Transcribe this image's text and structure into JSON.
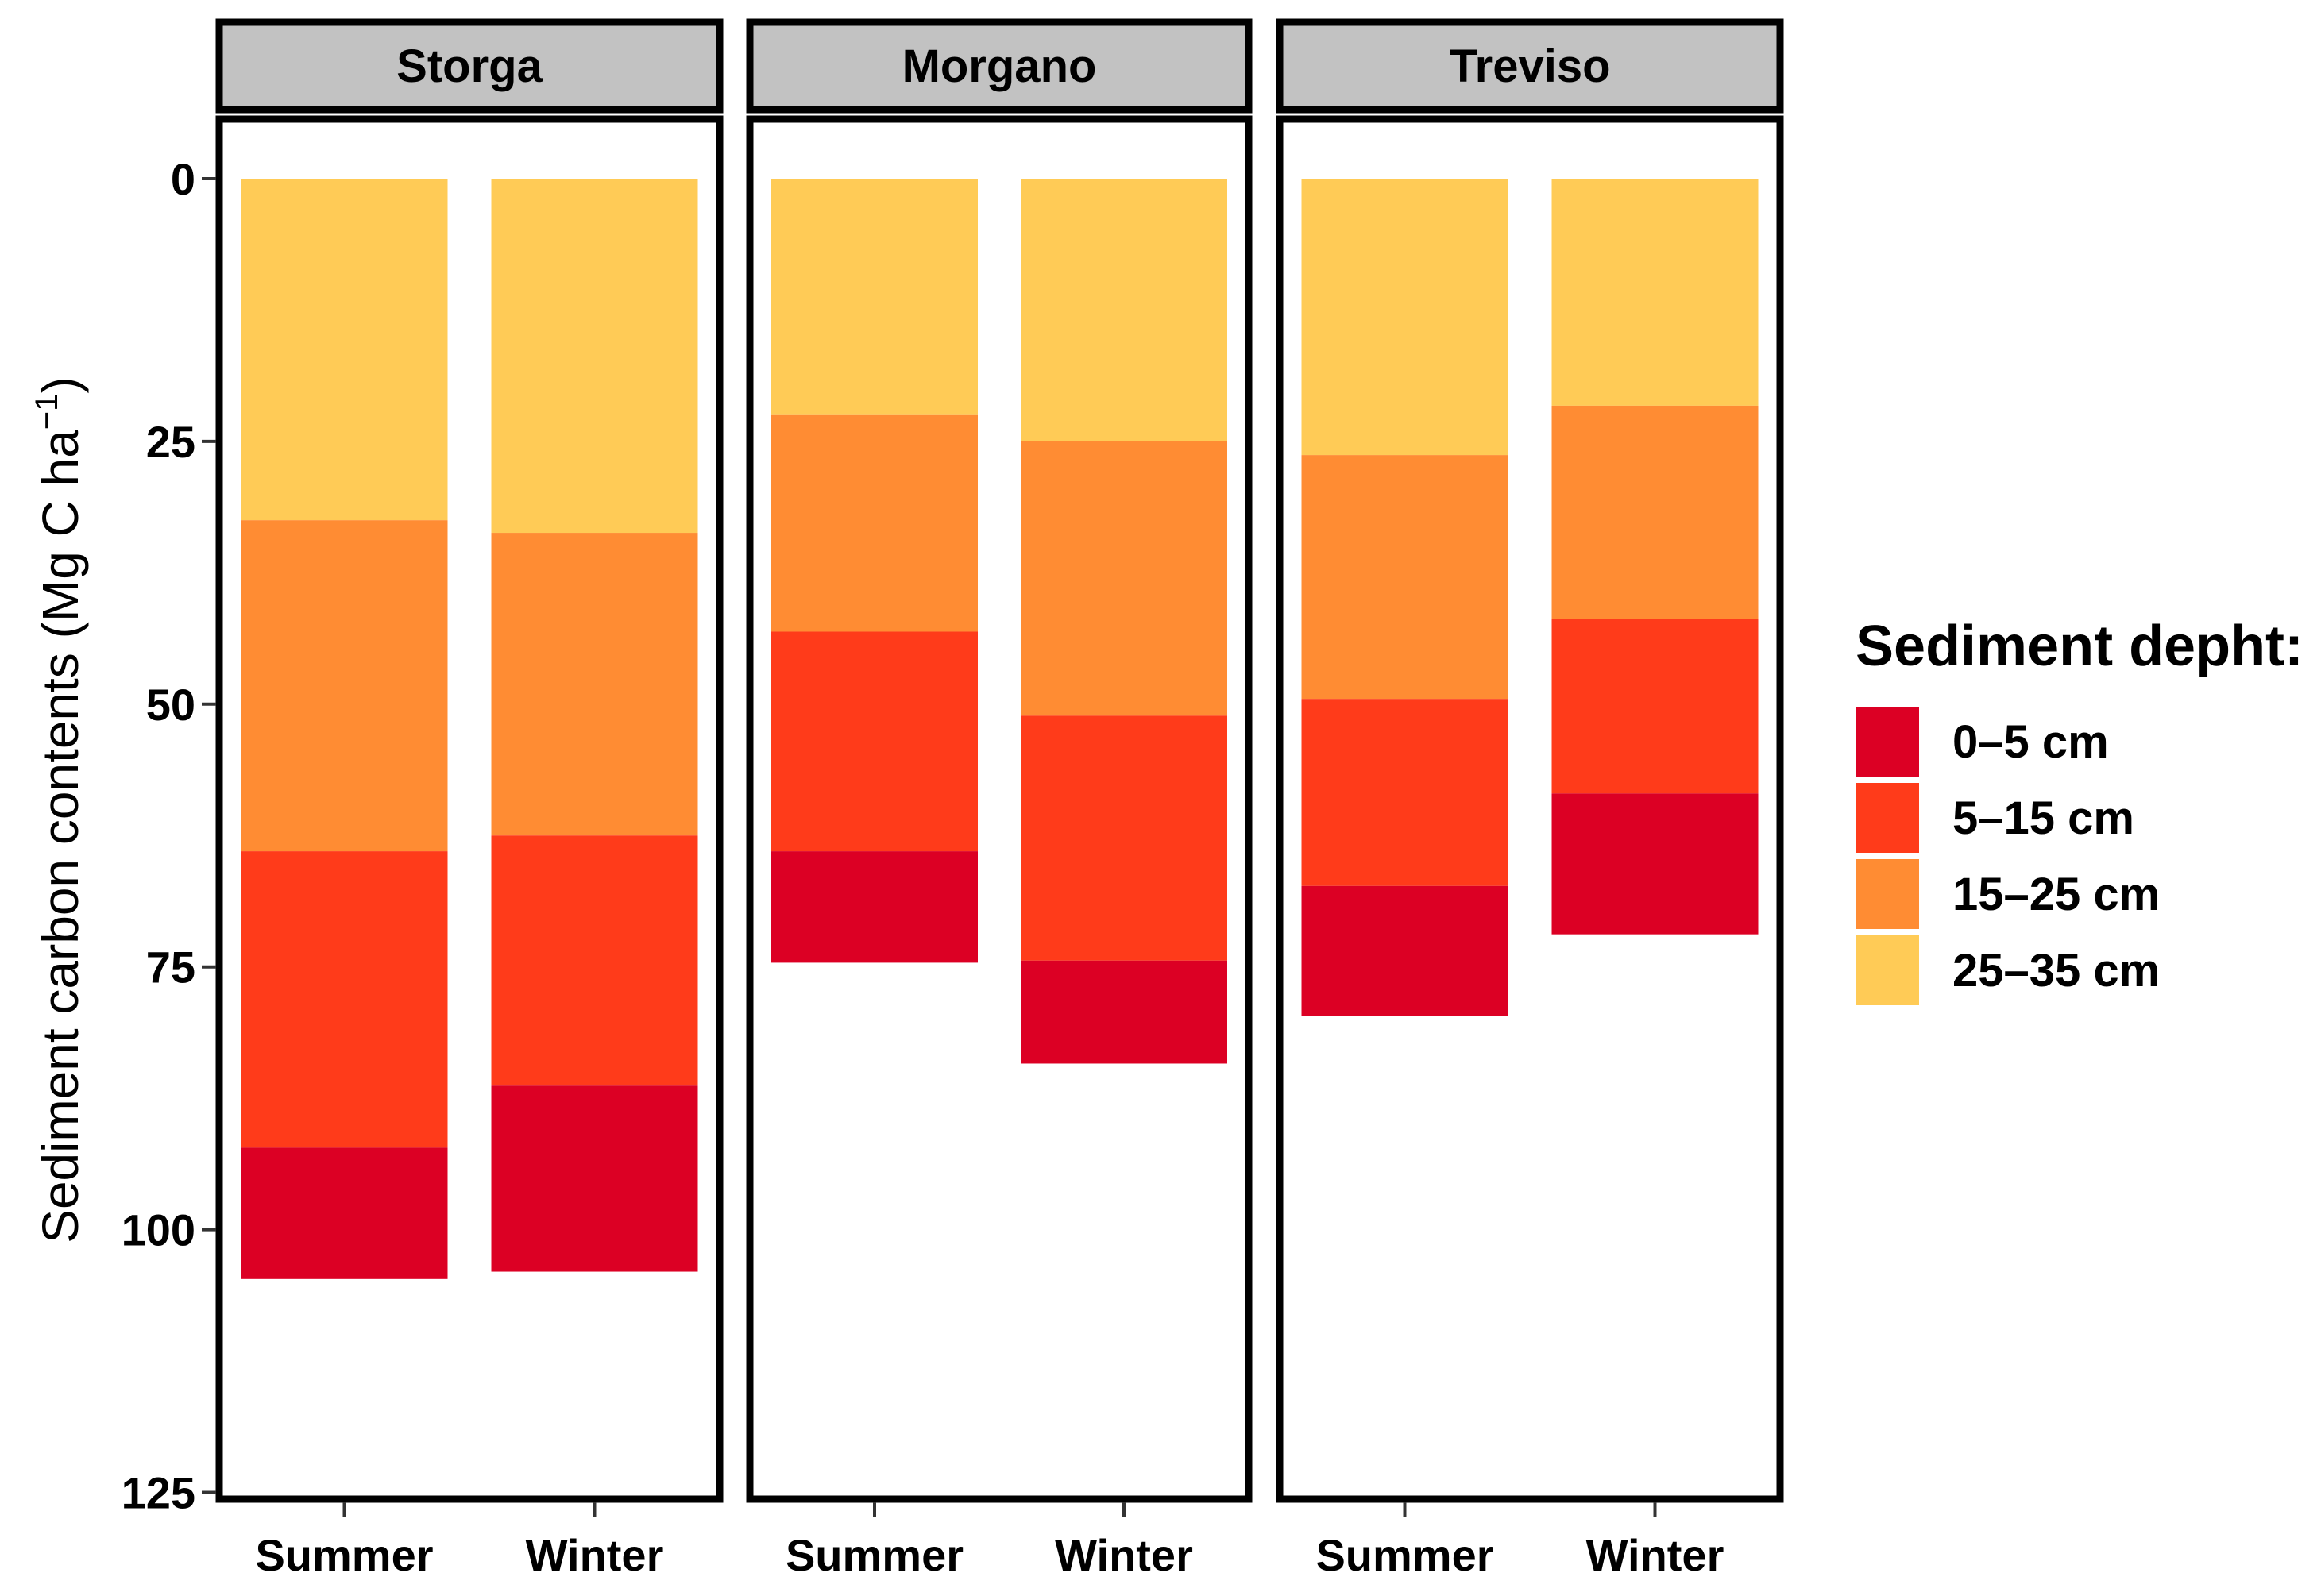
{
  "chart_data": {
    "type": "bar",
    "subtype": "stacked-faceted-reversed-y",
    "facets": [
      "Storga",
      "Morgano",
      "Treviso"
    ],
    "categories": [
      "Summer",
      "Winter"
    ],
    "ylabel": "Sediment carbon contents (Mg C ha",
    "ylabel_sup": "−1",
    "ylabel_close": ")",
    "ylim": [
      0,
      125
    ],
    "yticks": [
      0,
      25,
      50,
      75,
      100,
      125
    ],
    "y_reversed": true,
    "legend": {
      "title": "Sediment depht:",
      "position": "right",
      "entries": [
        "0–5 cm",
        "5–15 cm",
        "15–25 cm",
        "25–35 cm"
      ]
    },
    "stack_order_from_zero": [
      "25–35 cm",
      "15–25 cm",
      "5–15 cm",
      "0–5 cm"
    ],
    "colors": {
      "0–5 cm": "#DC0024",
      "5–15 cm": "#FF3B1A",
      "15–25 cm": "#FF8C33",
      "25–35 cm": "#FFCB56"
    },
    "series": [
      {
        "facet": "Storga",
        "season": "Summer",
        "values": {
          "25–35 cm": 32.5,
          "15–25 cm": 31.5,
          "5–15 cm": 28.2,
          "0–5 cm": 12.5
        }
      },
      {
        "facet": "Storga",
        "season": "Winter",
        "values": {
          "25–35 cm": 33.7,
          "15–25 cm": 28.8,
          "5–15 cm": 23.8,
          "0–5 cm": 17.7
        }
      },
      {
        "facet": "Morgano",
        "season": "Summer",
        "values": {
          "25–35 cm": 22.5,
          "15–25 cm": 20.6,
          "5–15 cm": 20.9,
          "0–5 cm": 10.6
        }
      },
      {
        "facet": "Morgano",
        "season": "Winter",
        "values": {
          "25–35 cm": 25.0,
          "15–25 cm": 26.1,
          "5–15 cm": 23.3,
          "0–5 cm": 9.8
        }
      },
      {
        "facet": "Treviso",
        "season": "Summer",
        "values": {
          "25–35 cm": 26.3,
          "15–25 cm": 23.2,
          "5–15 cm": 17.8,
          "0–5 cm": 12.4
        }
      },
      {
        "facet": "Treviso",
        "season": "Winter",
        "values": {
          "25–35 cm": 21.6,
          "15–25 cm": 20.3,
          "5–15 cm": 16.6,
          "0–5 cm": 13.4
        }
      }
    ]
  }
}
